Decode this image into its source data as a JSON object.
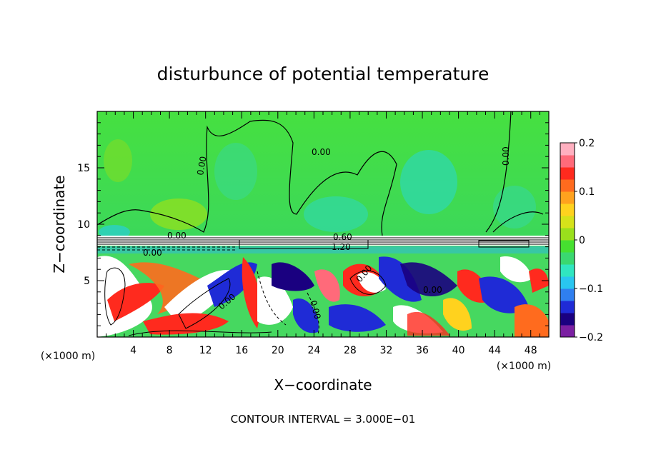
{
  "chart_data": {
    "type": "heatmap",
    "title": "disturbunce of potential temperature",
    "xlabel": "X−coordinate",
    "ylabel": "Z−coordinate",
    "x_unit_left": "(×1000 m)",
    "x_unit_right": "(×1000 m)",
    "xlim": [
      0,
      50
    ],
    "ylim": [
      0,
      20
    ],
    "x_ticks": [
      "4",
      "8",
      "12",
      "16",
      "20",
      "24",
      "28",
      "32",
      "36",
      "40",
      "44",
      "48"
    ],
    "y_ticks": [
      "5",
      "10",
      "15"
    ],
    "colorbar": {
      "range": [
        -0.2,
        0.2
      ],
      "tick_labels": [
        "0.2",
        "0.1",
        "0",
        "−0.1",
        "−0.2"
      ],
      "colors": [
        "#7b1fa2",
        "#1a0080",
        "#1f2bd6",
        "#2f7ff0",
        "#29c6f0",
        "#30e6c0",
        "#3ad870",
        "#46e030",
        "#9ae01c",
        "#d6e21a",
        "#ffd21e",
        "#ffa21e",
        "#ff6b1e",
        "#ff2a1e",
        "#ff6a7a",
        "#ffb0c0"
      ]
    },
    "contour_labels": [
      "0.00",
      "0.00",
      "0.00",
      "0.00",
      "0.00",
      "0.00",
      "0.00",
      "0.00",
      "0.00",
      "0.60",
      "1.20"
    ],
    "footer": "CONTOUR INTERVAL =  3.000E−01"
  }
}
